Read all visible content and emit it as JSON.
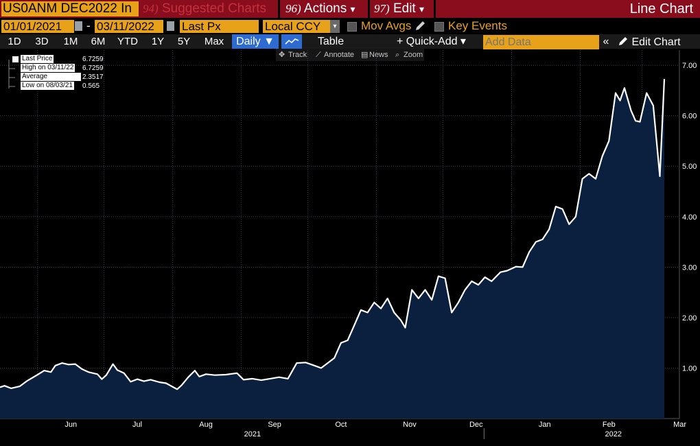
{
  "toolbar": {
    "ticker": "US0ANM DEC2022 In",
    "suggested_num": "94)",
    "suggested_label": "Suggested Charts",
    "actions_num": "96)",
    "actions_label": "Actions",
    "edit_num": "97)",
    "edit_label": "Edit",
    "view_title": "Line Chart",
    "dropdown_glyph": "▾"
  },
  "settings": {
    "start_date": "01/01/2021",
    "date_sep": "-",
    "end_date": "03/11/2022",
    "field": "Last Px",
    "currency": "Local CCY",
    "mov_avgs": "Mov Avgs",
    "key_events": "Key Events"
  },
  "periods": {
    "buttons": [
      "1D",
      "3D",
      "1M",
      "6M",
      "YTD",
      "1Y",
      "5Y",
      "Max"
    ],
    "selected": "Daily ▼",
    "table": "Table",
    "quick_add": "+ Quick-Add ▾",
    "add_data_placeholder": "Add Data",
    "collapse": "«",
    "edit_chart": "Edit Chart"
  },
  "tools": {
    "track": "Track",
    "annotate": "Annotate",
    "news": "News",
    "zoom": "Zoom"
  },
  "legend": {
    "items": [
      {
        "label": "Last Price",
        "value": "6.7259"
      },
      {
        "label": "High on 03/11/22",
        "value": "6.7259"
      },
      {
        "label": "Average",
        "value": "2.3517"
      },
      {
        "label": "Low on 08/03/21",
        "value": "0.565"
      }
    ]
  },
  "colors": {
    "line": "#ffffff",
    "area": "#0b1f3f",
    "grid": "#3c4450",
    "accent": "#e8a21a",
    "header": "#8a0d1d"
  },
  "icons": [
    "calendar-icon",
    "dropdown-icon",
    "pencil-icon",
    "line-chart-icon",
    "track-icon",
    "annotate-icon",
    "news-icon",
    "zoom-icon"
  ],
  "chart_data": {
    "type": "area",
    "series_name": "Last Price",
    "y_range": [
      0,
      7.3
    ],
    "y_ticks": [
      "1.00",
      "2.00",
      "3.00",
      "4.00",
      "5.00",
      "6.00",
      "7.00"
    ],
    "x_range": [
      "2021-05-15",
      "2022-03-11"
    ],
    "x_labels": [
      "Jun",
      "Jul",
      "Aug",
      "Sep",
      "Oct",
      "Nov",
      "Dec",
      "Jan",
      "Feb",
      "Mar"
    ],
    "year_labels": [
      "2021",
      "2022"
    ],
    "grid": true,
    "points": [
      [
        "2021-05-15",
        0.62
      ],
      [
        "2021-05-17",
        0.65
      ],
      [
        "2021-05-20",
        0.6
      ],
      [
        "2021-05-24",
        0.64
      ],
      [
        "2021-05-27",
        0.74
      ],
      [
        "2021-06-01",
        0.87
      ],
      [
        "2021-06-04",
        0.95
      ],
      [
        "2021-06-07",
        0.92
      ],
      [
        "2021-06-09",
        1.05
      ],
      [
        "2021-06-12",
        1.1
      ],
      [
        "2021-06-15",
        1.07
      ],
      [
        "2021-06-18",
        1.08
      ],
      [
        "2021-06-21",
        0.98
      ],
      [
        "2021-06-24",
        0.92
      ],
      [
        "2021-06-28",
        0.88
      ],
      [
        "2021-06-30",
        0.78
      ],
      [
        "2021-07-02",
        0.86
      ],
      [
        "2021-07-05",
        1.08
      ],
      [
        "2021-07-07",
        0.96
      ],
      [
        "2021-07-10",
        0.9
      ],
      [
        "2021-07-13",
        0.73
      ],
      [
        "2021-07-16",
        0.78
      ],
      [
        "2021-07-19",
        0.74
      ],
      [
        "2021-07-22",
        0.77
      ],
      [
        "2021-07-26",
        0.72
      ],
      [
        "2021-07-29",
        0.7
      ],
      [
        "2021-08-03",
        0.58
      ],
      [
        "2021-08-05",
        0.66
      ],
      [
        "2021-08-08",
        0.82
      ],
      [
        "2021-08-11",
        0.95
      ],
      [
        "2021-08-13",
        0.83
      ],
      [
        "2021-08-16",
        0.88
      ],
      [
        "2021-08-20",
        0.86
      ],
      [
        "2021-08-25",
        0.87
      ],
      [
        "2021-08-30",
        0.9
      ],
      [
        "2021-09-02",
        0.77
      ],
      [
        "2021-09-06",
        0.79
      ],
      [
        "2021-09-10",
        0.76
      ],
      [
        "2021-09-14",
        0.79
      ],
      [
        "2021-09-18",
        0.82
      ],
      [
        "2021-09-22",
        0.79
      ],
      [
        "2021-09-26",
        1.1
      ],
      [
        "2021-09-30",
        1.11
      ],
      [
        "2021-10-04",
        1.05
      ],
      [
        "2021-10-07",
        1.0
      ],
      [
        "2021-10-10",
        1.1
      ],
      [
        "2021-10-13",
        1.2
      ],
      [
        "2021-10-16",
        1.5
      ],
      [
        "2021-10-19",
        1.55
      ],
      [
        "2021-10-22",
        1.85
      ],
      [
        "2021-10-25",
        2.15
      ],
      [
        "2021-10-28",
        2.1
      ],
      [
        "2021-10-31",
        2.3
      ],
      [
        "2021-11-03",
        2.18
      ],
      [
        "2021-11-06",
        2.38
      ],
      [
        "2021-11-09",
        2.1
      ],
      [
        "2021-11-12",
        1.95
      ],
      [
        "2021-11-14",
        1.8
      ],
      [
        "2021-11-17",
        2.55
      ],
      [
        "2021-11-20",
        2.38
      ],
      [
        "2021-11-23",
        2.55
      ],
      [
        "2021-11-26",
        2.35
      ],
      [
        "2021-11-29",
        2.82
      ],
      [
        "2021-12-02",
        2.78
      ],
      [
        "2021-12-05",
        2.1
      ],
      [
        "2021-12-08",
        2.3
      ],
      [
        "2021-12-11",
        2.55
      ],
      [
        "2021-12-14",
        2.72
      ],
      [
        "2021-12-17",
        2.65
      ],
      [
        "2021-12-20",
        2.8
      ],
      [
        "2021-12-23",
        2.72
      ],
      [
        "2021-12-27",
        2.9
      ],
      [
        "2021-12-30",
        2.93
      ],
      [
        "2022-01-03",
        3.01
      ],
      [
        "2022-01-06",
        3.0
      ],
      [
        "2022-01-09",
        3.3
      ],
      [
        "2022-01-12",
        3.5
      ],
      [
        "2022-01-15",
        3.55
      ],
      [
        "2022-01-18",
        3.75
      ],
      [
        "2022-01-21",
        4.2
      ],
      [
        "2022-01-24",
        4.15
      ],
      [
        "2022-01-27",
        3.85
      ],
      [
        "2022-01-30",
        4.0
      ],
      [
        "2022-02-02",
        4.75
      ],
      [
        "2022-02-05",
        4.85
      ],
      [
        "2022-02-08",
        4.75
      ],
      [
        "2022-02-11",
        5.2
      ],
      [
        "2022-02-14",
        5.5
      ],
      [
        "2022-02-17",
        6.45
      ],
      [
        "2022-02-19",
        6.3
      ],
      [
        "2022-02-21",
        6.55
      ],
      [
        "2022-02-24",
        6.1
      ],
      [
        "2022-02-26",
        5.9
      ],
      [
        "2022-02-28",
        5.88
      ],
      [
        "2022-03-03",
        6.45
      ],
      [
        "2022-03-06",
        6.2
      ],
      [
        "2022-03-09",
        4.8
      ],
      [
        "2022-03-11",
        6.7259
      ]
    ]
  }
}
